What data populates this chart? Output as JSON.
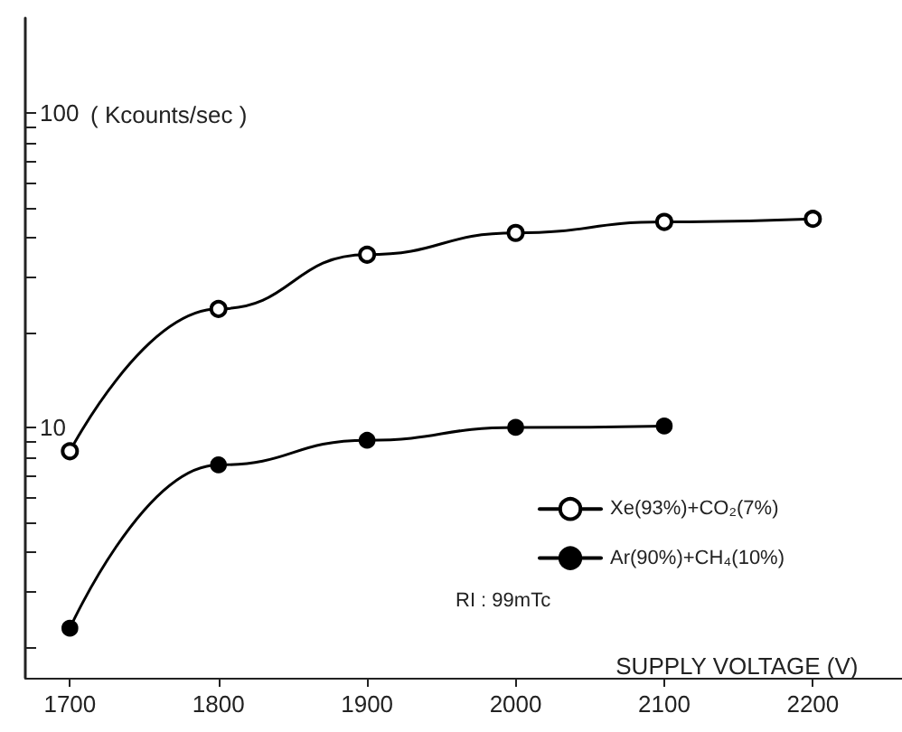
{
  "chart_data": {
    "type": "line",
    "xlabel": "SUPPLY VOLTAGE (V)",
    "ylabel": "( Kcounts/sec )",
    "x": [
      1700,
      1800,
      1900,
      2000,
      2100,
      2200
    ],
    "series": [
      {
        "name": "Xe(93%)+CO₂(7%)",
        "color": "#000000",
        "values": [
          8.4,
          23.8,
          35.4,
          41.5,
          45,
          46
        ]
      },
      {
        "name": "Ar(90%)+CH₄(10%)",
        "color": "#000000",
        "values": [
          2.3,
          7.6,
          9.1,
          10,
          10.1,
          null
        ]
      }
    ],
    "annotations": [
      "RI : 99mTc"
    ],
    "log": "y",
    "xlim": [
      1670,
      2260
    ],
    "xticks": [
      1700,
      1800,
      1900,
      2000,
      2100,
      2200
    ],
    "ylim": [
      1.6,
      200
    ],
    "yticks": [
      {
        "value": 2,
        "label": null
      },
      {
        "value": 3,
        "label": null
      },
      {
        "value": 4,
        "label": null
      },
      {
        "value": 5,
        "label": null
      },
      {
        "value": 6,
        "label": null
      },
      {
        "value": 7,
        "label": null
      },
      {
        "value": 8,
        "label": null
      },
      {
        "value": 9,
        "label": null
      },
      10,
      {
        "value": 20,
        "label": null
      },
      {
        "value": 30,
        "label": null
      },
      {
        "value": 40,
        "label": null
      },
      {
        "value": 50,
        "label": null
      },
      {
        "value": 60,
        "label": null
      },
      {
        "value": 70,
        "label": null
      },
      {
        "value": 80,
        "label": null
      },
      {
        "value": 90,
        "label": null
      },
      100
    ],
    "grid": false,
    "legend": "center right",
    "marker": "circle",
    "line_style": "solid"
  }
}
